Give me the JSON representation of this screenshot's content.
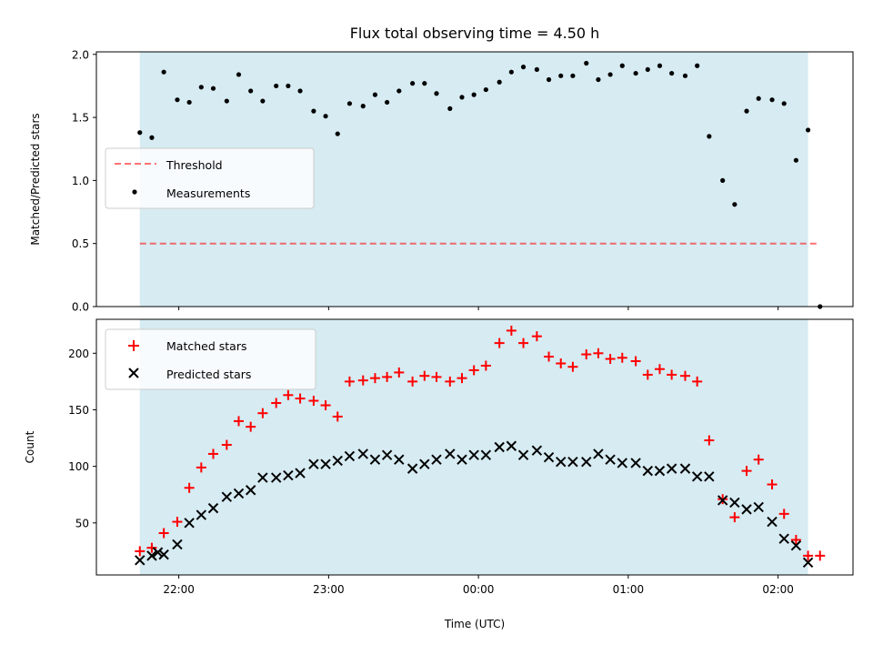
{
  "title": "Flux total observing time = 4.50 h",
  "colors": {
    "observing_span": "#add8e6",
    "threshold": "#ff0000",
    "measurements": "#000000",
    "matched": "#ff0000",
    "predicted": "#000000"
  },
  "chart_data": [
    {
      "type": "scatter",
      "panel": "top",
      "title": "Flux total observing time = 4.50 h",
      "xlabel": "",
      "ylabel": "Matched/Predicted stars",
      "x_unit": "hours relative to 00:00 UTC",
      "xlim": [
        -2.55,
        2.5
      ],
      "ylim": [
        0,
        2.02
      ],
      "yticks": [
        0.0,
        0.5,
        1.0,
        1.5,
        2.0
      ],
      "ytick_labels": [
        "0.0",
        "0.5",
        "1.0",
        "1.5",
        "2.0"
      ],
      "xticks": [
        -2,
        -1,
        0,
        1,
        2
      ],
      "xtick_labels": [],
      "shaded_span": [
        -2.26,
        2.2
      ],
      "legend_position": "center-left",
      "grid": false,
      "threshold": {
        "name": "Threshold",
        "y": 0.5,
        "x_range": [
          -2.26,
          2.28
        ],
        "style": "dashed"
      },
      "series": [
        {
          "name": "Measurements",
          "x": [
            -2.26,
            -2.18,
            -2.1,
            -2.01,
            -1.93,
            -1.85,
            -1.77,
            -1.68,
            -1.6,
            -1.52,
            -1.44,
            -1.35,
            -1.27,
            -1.19,
            -1.1,
            -1.02,
            -0.94,
            -0.86,
            -0.77,
            -0.69,
            -0.61,
            -0.53,
            -0.44,
            -0.36,
            -0.28,
            -0.19,
            -0.11,
            -0.03,
            0.05,
            0.14,
            0.22,
            0.3,
            0.39,
            0.47,
            0.55,
            0.63,
            0.72,
            0.8,
            0.88,
            0.96,
            1.05,
            1.13,
            1.21,
            1.29,
            1.38,
            1.46,
            1.54,
            1.63,
            1.71,
            1.79,
            1.87,
            1.96,
            2.04,
            2.12,
            2.2,
            2.28
          ],
          "y": [
            1.38,
            1.34,
            1.86,
            1.64,
            1.62,
            1.74,
            1.73,
            1.63,
            1.84,
            1.71,
            1.63,
            1.75,
            1.75,
            1.71,
            1.55,
            1.51,
            1.37,
            1.61,
            1.59,
            1.68,
            1.62,
            1.71,
            1.77,
            1.77,
            1.69,
            1.57,
            1.66,
            1.68,
            1.72,
            1.78,
            1.86,
            1.9,
            1.88,
            1.8,
            1.83,
            1.83,
            1.93,
            1.8,
            1.84,
            1.91,
            1.85,
            1.88,
            1.91,
            1.85,
            1.83,
            1.91,
            1.35,
            1.0,
            0.81,
            1.55,
            1.65,
            1.64,
            1.61,
            1.16,
            1.4,
            0.0
          ]
        }
      ]
    },
    {
      "type": "scatter",
      "panel": "bottom",
      "xlabel": "Time (UTC)",
      "ylabel": "Count",
      "x_unit": "hours relative to 00:00 UTC",
      "xlim": [
        -2.55,
        2.5
      ],
      "ylim": [
        4,
        230
      ],
      "yticks": [
        50,
        100,
        150,
        200
      ],
      "ytick_labels": [
        "50",
        "100",
        "150",
        "200"
      ],
      "xticks": [
        -2,
        -1,
        0,
        1,
        2
      ],
      "xtick_labels": [
        "22:00",
        "23:00",
        "00:00",
        "01:00",
        "02:00"
      ],
      "shaded_span": [
        -2.26,
        2.2
      ],
      "legend_position": "upper-left",
      "grid": false,
      "series": [
        {
          "name": "Matched stars",
          "marker": "plus",
          "x": [
            -2.26,
            -2.18,
            -2.1,
            -2.01,
            -1.93,
            -1.85,
            -1.77,
            -1.68,
            -1.6,
            -1.52,
            -1.44,
            -1.35,
            -1.27,
            -1.19,
            -1.1,
            -1.02,
            -0.94,
            -0.86,
            -0.77,
            -0.69,
            -0.61,
            -0.53,
            -0.44,
            -0.36,
            -0.28,
            -0.19,
            -0.11,
            -0.03,
            0.05,
            0.14,
            0.22,
            0.3,
            0.39,
            0.47,
            0.55,
            0.63,
            0.72,
            0.8,
            0.88,
            0.96,
            1.05,
            1.13,
            1.21,
            1.29,
            1.38,
            1.46,
            1.54,
            1.63,
            1.71,
            1.79,
            1.87,
            1.96,
            2.04,
            2.12,
            2.2,
            2.28
          ],
          "y": [
            25,
            28,
            41,
            51,
            81,
            99,
            111,
            119,
            140,
            135,
            147,
            156,
            163,
            160,
            158,
            154,
            144,
            175,
            176,
            178,
            179,
            183,
            175,
            180,
            179,
            175,
            178,
            185,
            189,
            209,
            220,
            209,
            215,
            197,
            191,
            188,
            199,
            200,
            195,
            196,
            193,
            181,
            186,
            181,
            180,
            175,
            123,
            71,
            55,
            96,
            106,
            84,
            58,
            35,
            21,
            21
          ]
        },
        {
          "name": "Predicted stars",
          "marker": "x",
          "x": [
            -2.26,
            -2.18,
            -2.14,
            -2.1,
            -2.01,
            -1.93,
            -1.85,
            -1.77,
            -1.68,
            -1.6,
            -1.52,
            -1.44,
            -1.35,
            -1.27,
            -1.19,
            -1.1,
            -1.02,
            -0.94,
            -0.86,
            -0.77,
            -0.69,
            -0.61,
            -0.53,
            -0.44,
            -0.36,
            -0.28,
            -0.19,
            -0.11,
            -0.03,
            0.05,
            0.14,
            0.22,
            0.3,
            0.39,
            0.47,
            0.55,
            0.63,
            0.72,
            0.8,
            0.88,
            0.96,
            1.05,
            1.13,
            1.21,
            1.29,
            1.38,
            1.46,
            1.54,
            1.63,
            1.71,
            1.79,
            1.87,
            1.96,
            2.04,
            2.12,
            2.2
          ],
          "y": [
            17,
            21,
            24,
            22,
            31,
            50,
            57,
            63,
            73,
            76,
            79,
            90,
            90,
            92,
            94,
            102,
            102,
            105,
            109,
            111,
            106,
            110,
            106,
            98,
            102,
            106,
            111,
            106,
            110,
            110,
            117,
            118,
            110,
            114,
            108,
            104,
            104,
            104,
            111,
            106,
            103,
            103,
            96,
            96,
            98,
            98,
            91,
            91,
            70,
            68,
            62,
            64,
            51,
            36,
            30,
            15
          ]
        }
      ]
    }
  ]
}
